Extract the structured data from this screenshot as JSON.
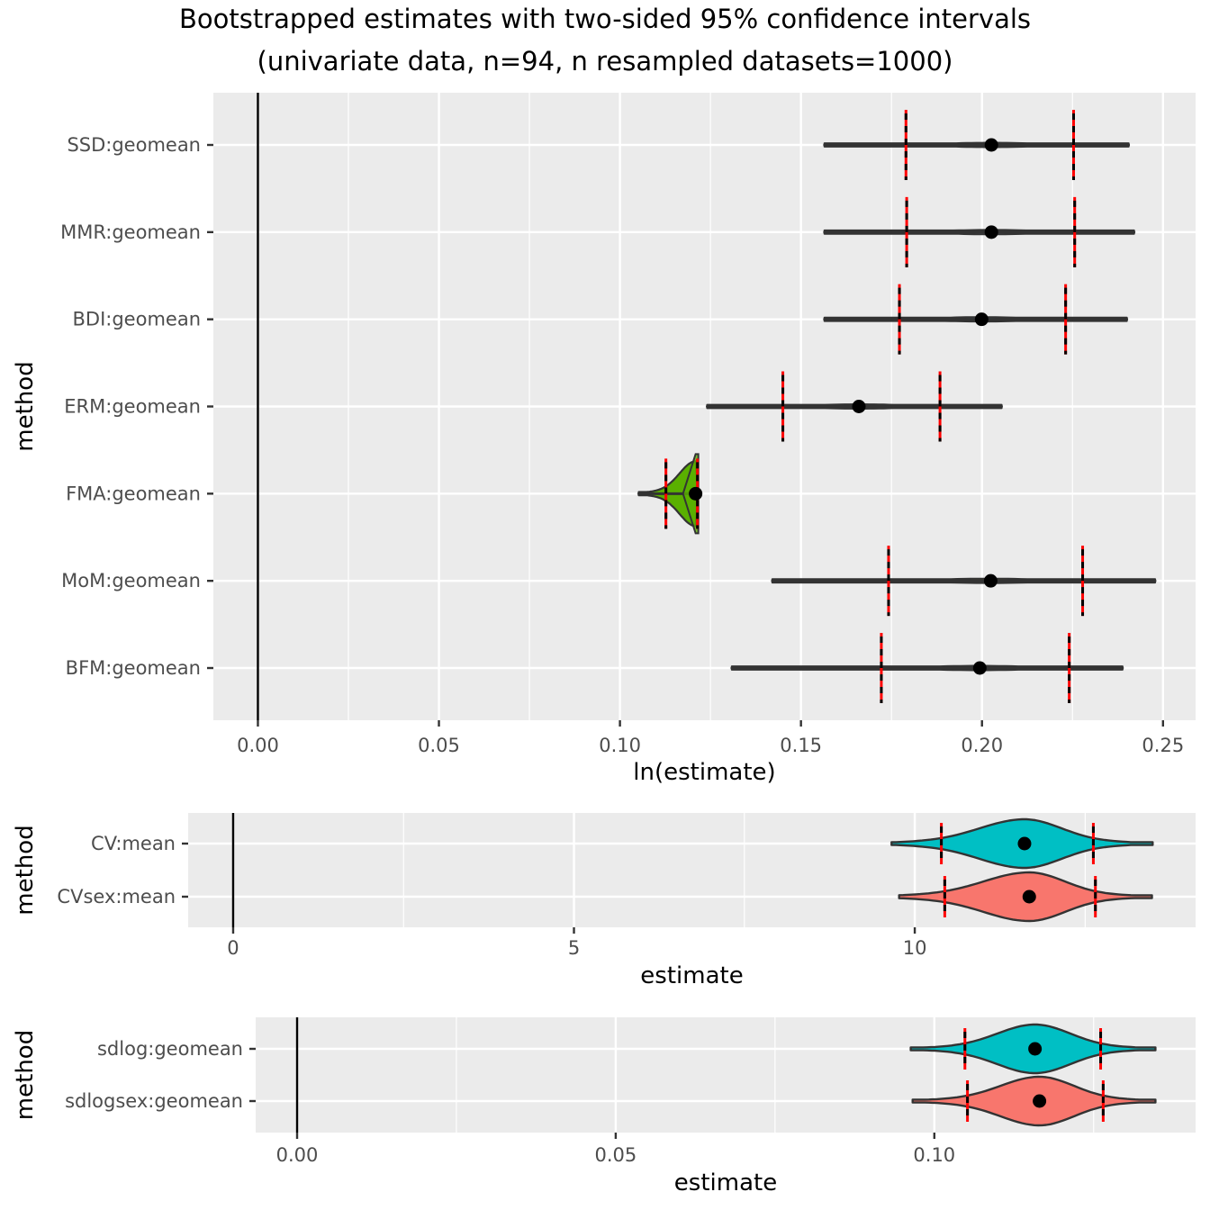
{
  "chart_data": {
    "title": "Bootstrapped estimates with two-sided 95% confidence intervals",
    "subtitle": "(univariate data, n=94, n resampled datasets=1000)",
    "panels": [
      {
        "type": "violin",
        "xlabel": "ln(estimate)",
        "ylabel": "method",
        "xlim": [
          -0.0123,
          0.259
        ],
        "xticks": [
          0.0,
          0.05,
          0.1,
          0.15,
          0.2,
          0.25
        ],
        "xtick_labels": [
          "0.00",
          "0.05",
          "0.10",
          "0.15",
          "0.20",
          "0.25"
        ],
        "reference_line_x": 0,
        "grid": true,
        "categories": [
          "SSD:geomean",
          "MMR:geomean",
          "BDI:geomean",
          "ERM:geomean",
          "FMA:geomean",
          "MoM:geomean",
          "BFM:geomean"
        ],
        "series": [
          {
            "name": "SSD:geomean",
            "min": 0.1565,
            "ci_lower": 0.179,
            "estimate": 0.2026,
            "ci_upper": 0.2253,
            "max": 0.2405,
            "fill": "#d771d5",
            "width": 0.06
          },
          {
            "name": "MMR:geomean",
            "min": 0.1565,
            "ci_lower": 0.1792,
            "estimate": 0.2026,
            "ci_upper": 0.2256,
            "max": 0.242,
            "fill": "#9a8cf0",
            "width": 0.06
          },
          {
            "name": "BDI:geomean",
            "min": 0.1565,
            "ci_lower": 0.1772,
            "estimate": 0.1999,
            "ci_upper": 0.2231,
            "max": 0.24,
            "fill": "#20a9c9",
            "width": 0.06
          },
          {
            "name": "ERM:geomean",
            "min": 0.1241,
            "ci_lower": 0.145,
            "estimate": 0.166,
            "ci_upper": 0.1884,
            "max": 0.2054,
            "fill": "#1f9e7a",
            "width": 0.06
          },
          {
            "name": "FMA:geomean",
            "min": 0.1052,
            "ci_lower": 0.1127,
            "estimate": 0.1209,
            "ci_upper": 0.1214,
            "max": 0.1214,
            "fill": "#5ab000",
            "width": 0.9
          },
          {
            "name": "MoM:geomean",
            "min": 0.1421,
            "ci_lower": 0.1742,
            "estimate": 0.2024,
            "ci_upper": 0.2278,
            "max": 0.2478,
            "fill": "#b59a00",
            "width": 0.06
          },
          {
            "name": "BFM:geomean",
            "min": 0.1309,
            "ci_lower": 0.1722,
            "estimate": 0.1994,
            "ci_upper": 0.2241,
            "max": 0.2388,
            "fill": "#e07a5f",
            "width": 0.06
          }
        ]
      },
      {
        "type": "violin",
        "xlabel": "estimate",
        "ylabel": "method",
        "xlim": [
          -0.66,
          14.12
        ],
        "xticks": [
          0,
          5,
          10
        ],
        "xtick_labels": [
          "0",
          "5",
          "10"
        ],
        "reference_line_x": 0,
        "grid": true,
        "categories": [
          "CV:mean",
          "CVsex:mean"
        ],
        "series": [
          {
            "name": "CV:mean",
            "min": 9.66,
            "ci_lower": 10.39,
            "estimate": 11.61,
            "ci_upper": 12.62,
            "max": 13.49,
            "fill": "#00bfc4"
          },
          {
            "name": "CVsex:mean",
            "min": 9.77,
            "ci_lower": 10.44,
            "estimate": 11.68,
            "ci_upper": 12.65,
            "max": 13.48,
            "fill": "#f8766d"
          }
        ]
      },
      {
        "type": "violin",
        "xlabel": "estimate",
        "ylabel": "method",
        "xlim": [
          -0.0065,
          0.141
        ],
        "xticks": [
          0.0,
          0.05,
          0.1
        ],
        "xtick_labels": [
          "0.00",
          "0.05",
          "0.10"
        ],
        "reference_line_x": 0,
        "grid": true,
        "categories": [
          "sdlog:geomean",
          "sdlogsex:geomean"
        ],
        "series": [
          {
            "name": "sdlog:geomean",
            "min": 0.0963,
            "ci_lower": 0.1048,
            "estimate": 0.1158,
            "ci_upper": 0.1261,
            "max": 0.1347,
            "fill": "#00bfc4"
          },
          {
            "name": "sdlogsex:geomean",
            "min": 0.0966,
            "ci_lower": 0.1052,
            "estimate": 0.1165,
            "ci_upper": 0.1265,
            "max": 0.1347,
            "fill": "#f8766d"
          }
        ]
      }
    ]
  }
}
